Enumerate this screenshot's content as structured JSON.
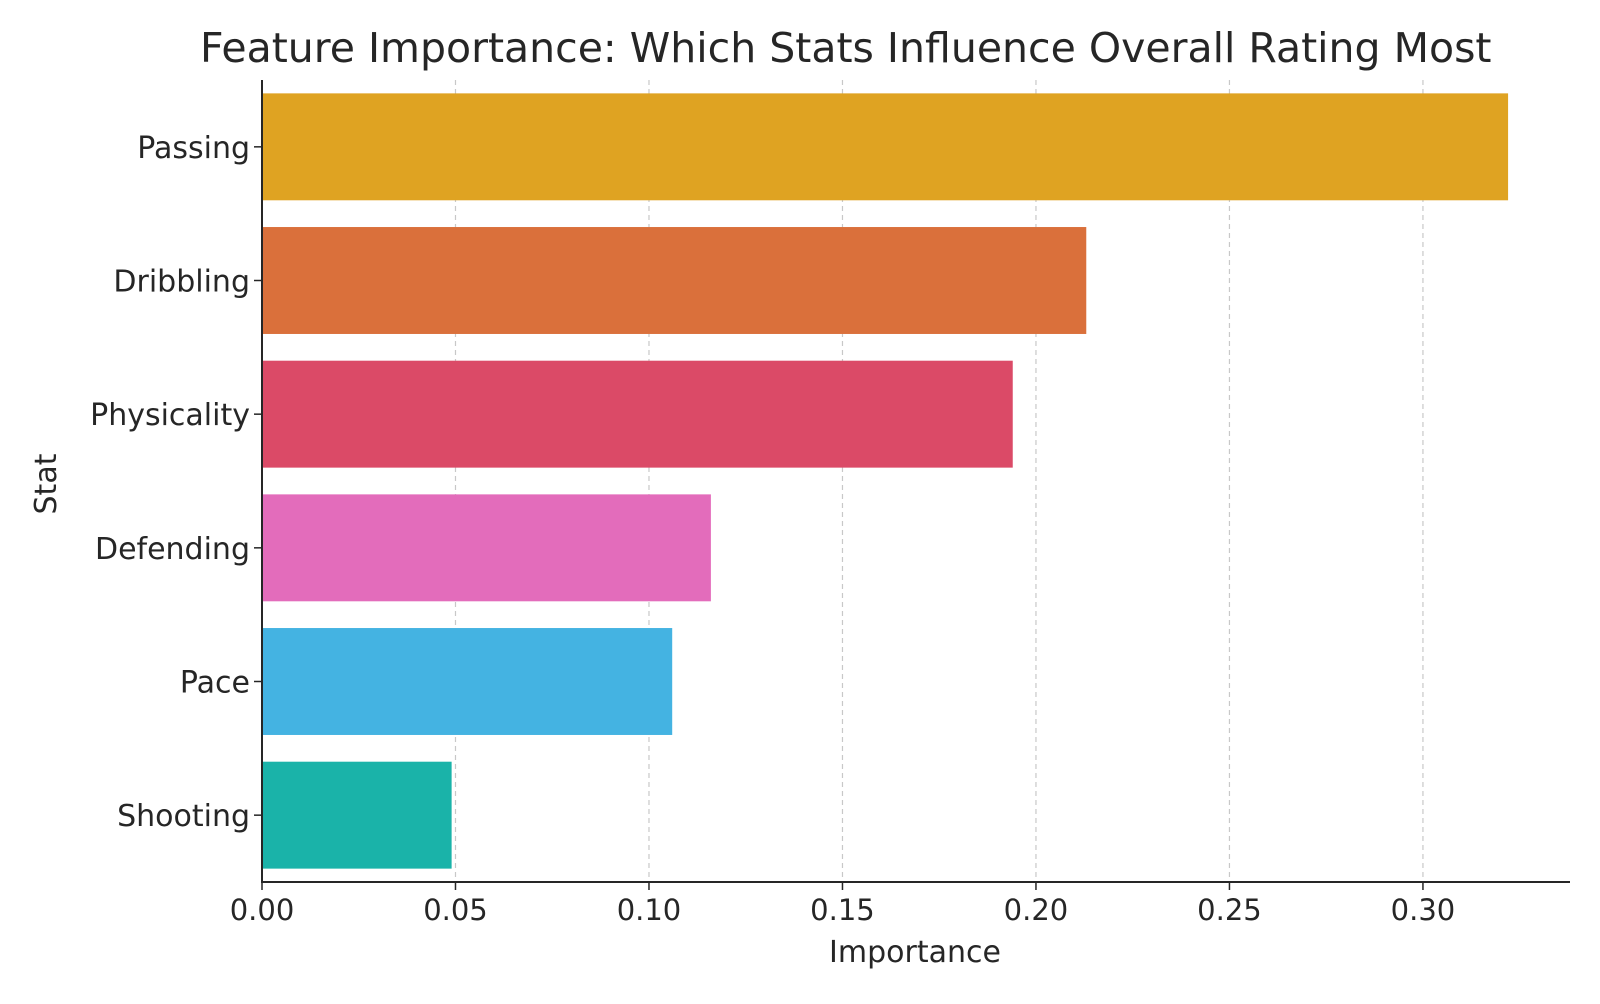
{
  "chart_data": {
    "type": "bar",
    "orientation": "horizontal",
    "title": "Feature Importance: Which Stats Influence Overall Rating Most",
    "xlabel": "Importance",
    "ylabel": "Stat",
    "xlim": [
      0,
      0.338
    ],
    "x_ticks": [
      "0.00",
      "0.05",
      "0.10",
      "0.15",
      "0.20",
      "0.25",
      "0.30"
    ],
    "x_tick_values": [
      0.0,
      0.05,
      0.1,
      0.15,
      0.2,
      0.25,
      0.3
    ],
    "grid": "vertical dashed",
    "categories": [
      "Passing",
      "Dribbling",
      "Physicality",
      "Defending",
      "Pace",
      "Shooting"
    ],
    "values": [
      0.322,
      0.213,
      0.194,
      0.116,
      0.106,
      0.049
    ],
    "colors": [
      "#DFA322",
      "#DA703B",
      "#DB4A67",
      "#E36CBB",
      "#44B3E2",
      "#1AB3A9"
    ]
  }
}
